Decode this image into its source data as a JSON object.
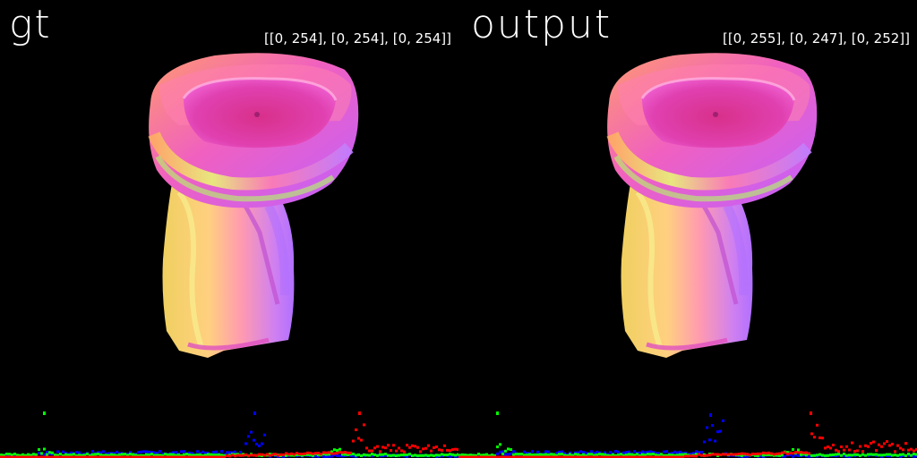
{
  "panels": [
    {
      "title": "gt",
      "range_text": "[[0, 254], [0, 254], [0, 254]]",
      "channel_ranges": [
        [
          0,
          254
        ],
        [
          0,
          254
        ],
        [
          0,
          254
        ]
      ]
    },
    {
      "title": "output",
      "range_text": "[[0, 255], [0, 247], [0, 252]]",
      "channel_ranges": [
        [
          0,
          255
        ],
        [
          0,
          247
        ],
        [
          0,
          252
        ]
      ]
    }
  ],
  "colors": {
    "background": "#000000",
    "text": "#ffffff",
    "hist_red": "#ff0000",
    "hist_green": "#00ff00",
    "hist_blue": "#0000ff",
    "render_magenta": "#e040c0",
    "render_pink": "#ff70a0",
    "render_yellow": "#f0e070",
    "render_violet": "#b070f0",
    "render_green": "#b0ff60"
  }
}
